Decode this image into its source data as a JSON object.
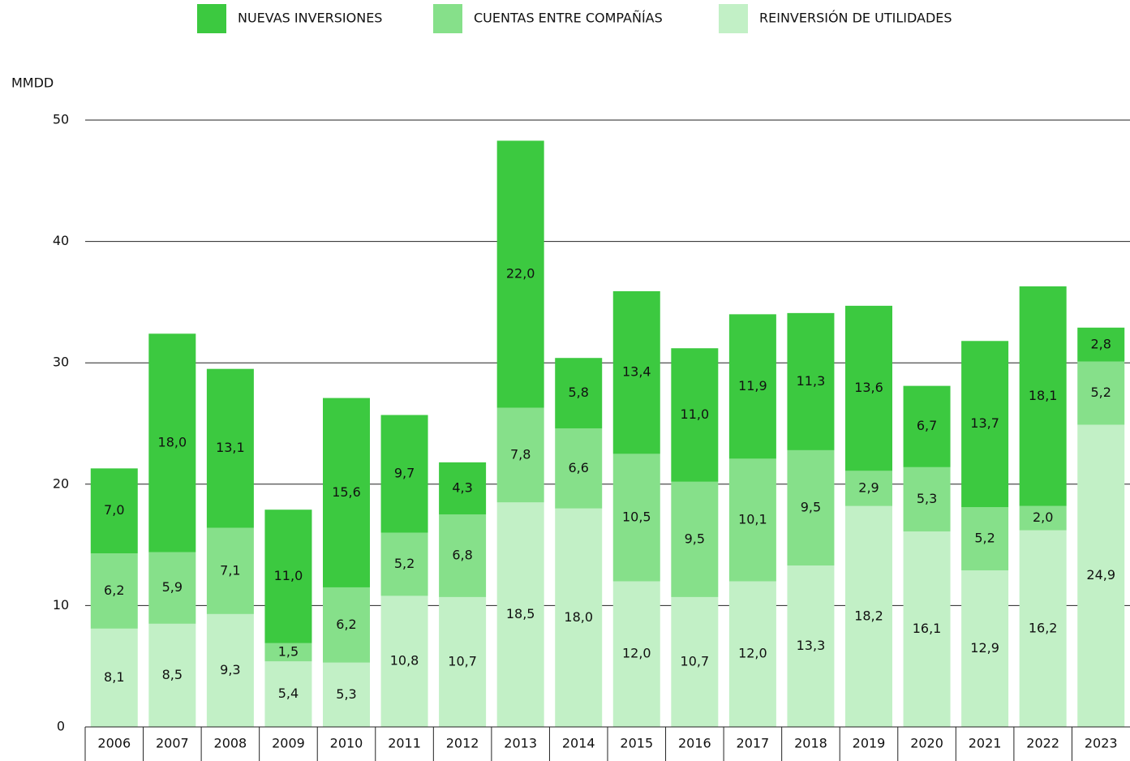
{
  "chart_data": {
    "type": "stacked_bar",
    "ylabel": "MMDD",
    "categories": [
      "2006",
      "2007",
      "2008",
      "2009",
      "2010",
      "2011",
      "2012",
      "2013",
      "2014",
      "2015",
      "2016",
      "2017",
      "2018",
      "2019",
      "2020",
      "2021",
      "2022",
      "2023"
    ],
    "series": [
      {
        "name": "NUEVAS INVERSIONES",
        "color": "#3cc940",
        "values": [
          7.0,
          18.0,
          13.1,
          11.0,
          15.6,
          9.7,
          4.3,
          22.0,
          5.8,
          13.4,
          11.0,
          11.9,
          11.3,
          13.6,
          6.7,
          13.7,
          18.1,
          2.8
        ],
        "value_labels": [
          "7,0",
          "18,0",
          "13,1",
          "11,0",
          "15,6",
          "9,7",
          "4,3",
          "22,0",
          "5,8",
          "13,4",
          "11,0",
          "11,9",
          "11,3",
          "13,6",
          "6,7",
          "13,7",
          "18,1",
          "2,8"
        ]
      },
      {
        "name": "CUENTAS ENTRE COMPAÑÍAS",
        "color": "#86e08a",
        "values": [
          6.2,
          5.9,
          7.1,
          1.5,
          6.2,
          5.2,
          6.8,
          7.8,
          6.6,
          10.5,
          9.5,
          10.1,
          9.5,
          2.9,
          5.3,
          5.2,
          2.0,
          5.2
        ],
        "value_labels": [
          "6,2",
          "5,9",
          "7,1",
          "1,5",
          "6,2",
          "5,2",
          "6,8",
          "7,8",
          "6,6",
          "10,5",
          "9,5",
          "10,1",
          "9,5",
          "2,9",
          "5,3",
          "5,2",
          "2,0",
          "5,2"
        ]
      },
      {
        "name": "REINVERSIÓN DE UTILIDADES",
        "color": "#c2f0c6",
        "values": [
          8.1,
          8.5,
          9.3,
          5.4,
          5.3,
          10.8,
          10.7,
          18.5,
          18.0,
          12.0,
          10.7,
          12.0,
          13.3,
          18.2,
          16.1,
          12.9,
          16.2,
          24.9
        ],
        "value_labels": [
          "8,1",
          "8,5",
          "9,3",
          "5,4",
          "5,3",
          "10,8",
          "10,7",
          "18,5",
          "18,0",
          "12,0",
          "10,7",
          "12,0",
          "13,3",
          "18,2",
          "16,1",
          "12,9",
          "16,2",
          "24,9"
        ]
      }
    ],
    "ylim": [
      0,
      50
    ],
    "yticks": [
      0,
      10,
      20,
      30,
      40,
      50
    ],
    "grid": true,
    "legend": "top"
  }
}
